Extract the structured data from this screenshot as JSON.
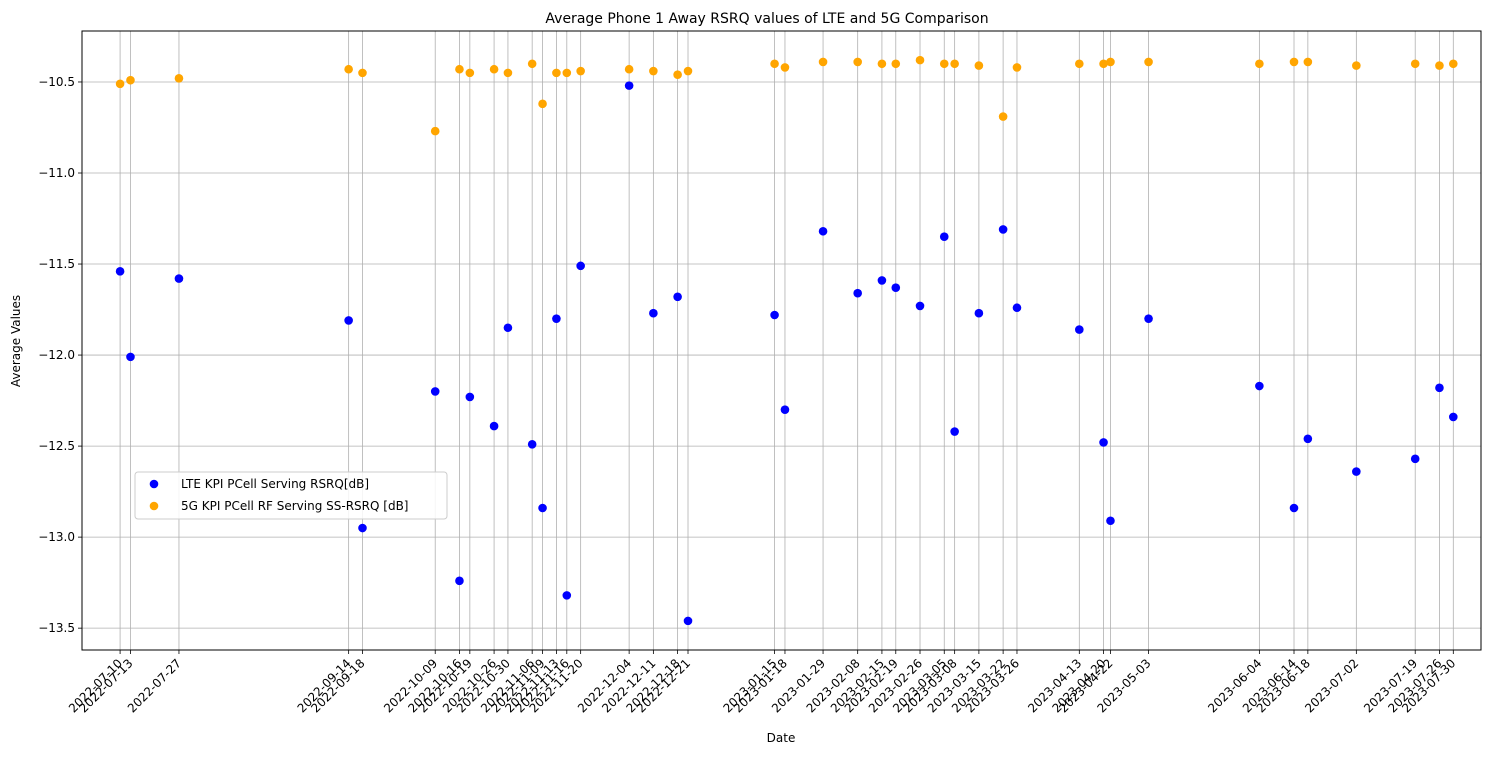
{
  "chart_data": {
    "type": "scatter",
    "title": "Average Phone 1 Away RSRQ values of LTE and 5G Comparison",
    "xlabel": "Date",
    "ylabel": "Average Values",
    "ylim": [
      -13.62,
      -10.22
    ],
    "xlim": [
      "2022-06-29",
      "2023-08-07"
    ],
    "yticks": [
      -10.5,
      -11.0,
      -11.5,
      -12.0,
      -12.5,
      -13.0,
      -13.5
    ],
    "ytick_labels": [
      "−10.5",
      "−11.0",
      "−11.5",
      "−12.0",
      "−12.5",
      "−13.0",
      "−13.5"
    ],
    "grid": true,
    "legend_position": "center-left",
    "x_tick_dates": [
      "2022-07-10",
      "2022-07-13",
      "2022-07-27",
      "2022-09-14",
      "2022-09-18",
      "2022-10-09",
      "2022-10-16",
      "2022-10-19",
      "2022-10-26",
      "2022-10-30",
      "2022-11-06",
      "2022-11-09",
      "2022-11-13",
      "2022-11-16",
      "2022-11-20",
      "2022-12-04",
      "2022-12-11",
      "2022-12-18",
      "2022-12-21",
      "2023-01-15",
      "2023-01-18",
      "2023-01-29",
      "2023-02-08",
      "2023-02-15",
      "2023-02-19",
      "2023-02-26",
      "2023-03-05",
      "2023-03-08",
      "2023-03-15",
      "2023-03-22",
      "2023-03-26",
      "2023-04-13",
      "2023-04-20",
      "2023-04-22",
      "2023-05-03",
      "2023-06-04",
      "2023-06-14",
      "2023-06-18",
      "2023-07-02",
      "2023-07-19",
      "2023-07-26",
      "2023-07-30"
    ],
    "series": [
      {
        "name": "LTE KPI PCell Serving RSRQ[dB]",
        "color": "#0000ff",
        "points": [
          [
            "2022-07-10",
            -11.54
          ],
          [
            "2022-07-13",
            -12.01
          ],
          [
            "2022-07-27",
            -11.58
          ],
          [
            "2022-09-14",
            -11.81
          ],
          [
            "2022-09-18",
            -12.95
          ],
          [
            "2022-10-09",
            -12.2
          ],
          [
            "2022-10-16",
            -13.24
          ],
          [
            "2022-10-19",
            -12.23
          ],
          [
            "2022-10-26",
            -12.39
          ],
          [
            "2022-10-30",
            -11.85
          ],
          [
            "2022-11-06",
            -12.49
          ],
          [
            "2022-11-09",
            -12.84
          ],
          [
            "2022-11-13",
            -11.8
          ],
          [
            "2022-11-16",
            -13.32
          ],
          [
            "2022-11-20",
            -11.51
          ],
          [
            "2022-12-04",
            -10.52
          ],
          [
            "2022-12-11",
            -11.77
          ],
          [
            "2022-12-18",
            -11.68
          ],
          [
            "2022-12-21",
            -13.46
          ],
          [
            "2023-01-15",
            -11.78
          ],
          [
            "2023-01-18",
            -12.3
          ],
          [
            "2023-01-29",
            -11.32
          ],
          [
            "2023-02-08",
            -11.66
          ],
          [
            "2023-02-15",
            -11.59
          ],
          [
            "2023-02-19",
            -11.63
          ],
          [
            "2023-02-26",
            -11.73
          ],
          [
            "2023-03-05",
            -11.35
          ],
          [
            "2023-03-08",
            -12.42
          ],
          [
            "2023-03-15",
            -11.77
          ],
          [
            "2023-03-22",
            -11.31
          ],
          [
            "2023-03-26",
            -11.74
          ],
          [
            "2023-04-13",
            -11.86
          ],
          [
            "2023-04-20",
            -12.48
          ],
          [
            "2023-04-22",
            -12.91
          ],
          [
            "2023-05-03",
            -11.8
          ],
          [
            "2023-06-04",
            -12.17
          ],
          [
            "2023-06-14",
            -12.84
          ],
          [
            "2023-06-18",
            -12.46
          ],
          [
            "2023-07-02",
            -12.64
          ],
          [
            "2023-07-19",
            -12.57
          ],
          [
            "2023-07-26",
            -12.18
          ],
          [
            "2023-07-30",
            -12.34
          ]
        ]
      },
      {
        "name": "5G KPI PCell RF Serving SS-RSRQ [dB]",
        "color": "#ffa500",
        "points": [
          [
            "2022-07-10",
            -10.51
          ],
          [
            "2022-07-13",
            -10.49
          ],
          [
            "2022-07-27",
            -10.48
          ],
          [
            "2022-09-14",
            -10.43
          ],
          [
            "2022-09-18",
            -10.45
          ],
          [
            "2022-10-09",
            -10.77
          ],
          [
            "2022-10-16",
            -10.43
          ],
          [
            "2022-10-19",
            -10.45
          ],
          [
            "2022-10-26",
            -10.43
          ],
          [
            "2022-10-30",
            -10.45
          ],
          [
            "2022-11-06",
            -10.4
          ],
          [
            "2022-11-09",
            -10.62
          ],
          [
            "2022-11-13",
            -10.45
          ],
          [
            "2022-11-16",
            -10.45
          ],
          [
            "2022-11-20",
            -10.44
          ],
          [
            "2022-12-04",
            -10.43
          ],
          [
            "2022-12-11",
            -10.44
          ],
          [
            "2022-12-18",
            -10.46
          ],
          [
            "2022-12-21",
            -10.44
          ],
          [
            "2023-01-15",
            -10.4
          ],
          [
            "2023-01-18",
            -10.42
          ],
          [
            "2023-01-29",
            -10.39
          ],
          [
            "2023-02-08",
            -10.39
          ],
          [
            "2023-02-15",
            -10.4
          ],
          [
            "2023-02-19",
            -10.4
          ],
          [
            "2023-02-26",
            -10.38
          ],
          [
            "2023-03-05",
            -10.4
          ],
          [
            "2023-03-08",
            -10.4
          ],
          [
            "2023-03-15",
            -10.41
          ],
          [
            "2023-03-22",
            -10.69
          ],
          [
            "2023-03-26",
            -10.42
          ],
          [
            "2023-04-13",
            -10.4
          ],
          [
            "2023-04-20",
            -10.4
          ],
          [
            "2023-04-22",
            -10.39
          ],
          [
            "2023-05-03",
            -10.39
          ],
          [
            "2023-06-04",
            -10.4
          ],
          [
            "2023-06-14",
            -10.39
          ],
          [
            "2023-06-18",
            -10.39
          ],
          [
            "2023-07-02",
            -10.41
          ],
          [
            "2023-07-19",
            -10.4
          ],
          [
            "2023-07-26",
            -10.41
          ],
          [
            "2023-07-30",
            -10.4
          ]
        ]
      }
    ]
  }
}
